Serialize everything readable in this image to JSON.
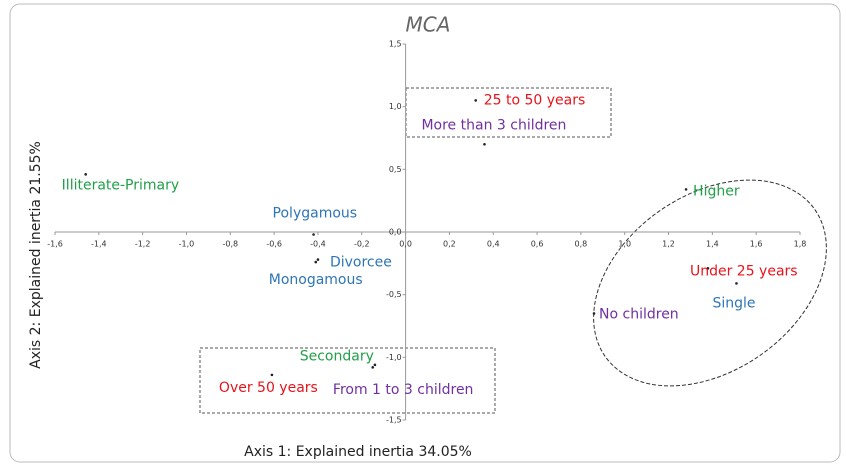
{
  "chart_data": {
    "type": "scatter",
    "title": "MCA",
    "x_label": "Axis 1: Explained inertia 34.05%",
    "y_label": "Axis 2: Explained inertia 21.55%",
    "xlim": [
      -1.6,
      1.8
    ],
    "ylim": [
      -1.5,
      1.5
    ],
    "xticks": [
      {
        "value": -1.6,
        "label": "-1,6"
      },
      {
        "value": -1.4,
        "label": "-1,4"
      },
      {
        "value": -1.2,
        "label": "-1,2"
      },
      {
        "value": -1.0,
        "label": "-1,0"
      },
      {
        "value": -0.8,
        "label": "-0,8"
      },
      {
        "value": -0.6,
        "label": "-0,6"
      },
      {
        "value": -0.4,
        "label": "-0,4"
      },
      {
        "value": -0.2,
        "label": "-0,2"
      },
      {
        "value": 0,
        "label": "0,0"
      },
      {
        "value": 0.2,
        "label": "0,2"
      },
      {
        "value": 0.4,
        "label": "0,4"
      },
      {
        "value": 0.6,
        "label": "0,6"
      },
      {
        "value": 0.8,
        "label": "0,8"
      },
      {
        "value": 1.0,
        "label": "1,0"
      },
      {
        "value": 1.2,
        "label": "1,2"
      },
      {
        "value": 1.4,
        "label": "1,4"
      },
      {
        "value": 1.6,
        "label": "1,6"
      },
      {
        "value": 1.8,
        "label": "1,8"
      }
    ],
    "yticks": [
      {
        "value": -1.5,
        "label": "-1,5"
      },
      {
        "value": -1.0,
        "label": "-1,0"
      },
      {
        "value": -0.5,
        "label": "-0,5"
      },
      {
        "value": 0,
        "label": "0,0"
      },
      {
        "value": 0.5,
        "label": "0,5"
      },
      {
        "value": 1.0,
        "label": "1,0"
      },
      {
        "value": 1.5,
        "label": "1,5"
      }
    ],
    "points": [
      {
        "label": "25 to 50 years",
        "x": 0.32,
        "y": 1.05,
        "color": "#e8141c"
      },
      {
        "label": "More than 3 children",
        "x": 0.36,
        "y": 0.7,
        "color": "#7030a0"
      },
      {
        "label": "Illiterate-Primary",
        "x": -1.46,
        "y": 0.46,
        "color": "#21a048"
      },
      {
        "label": "Polygamous",
        "x": -0.42,
        "y": -0.02,
        "color": "#2e75b6"
      },
      {
        "label": "Divorcee",
        "x": -0.4,
        "y": -0.22,
        "color": "#2e75b6"
      },
      {
        "label": "Monogamous",
        "x": -0.41,
        "y": -0.24,
        "color": "#2e75b6"
      },
      {
        "label": "Higher",
        "x": 1.28,
        "y": 0.34,
        "color": "#21a048"
      },
      {
        "label": "Under 25 years",
        "x": 1.38,
        "y": -0.29,
        "color": "#e8141c"
      },
      {
        "label": "Single",
        "x": 1.51,
        "y": -0.41,
        "color": "#2e75b6"
      },
      {
        "label": "No children",
        "x": 0.86,
        "y": -0.65,
        "color": "#7030a0"
      },
      {
        "label": "Secondary",
        "x": -0.15,
        "y": -1.08,
        "color": "#21a048"
      },
      {
        "label": "Over 50 years",
        "x": -0.61,
        "y": -1.14,
        "color": "#e8141c"
      },
      {
        "label": "From 1 to 3 children",
        "x": -0.14,
        "y": -1.06,
        "color": "#7030a0"
      }
    ]
  }
}
